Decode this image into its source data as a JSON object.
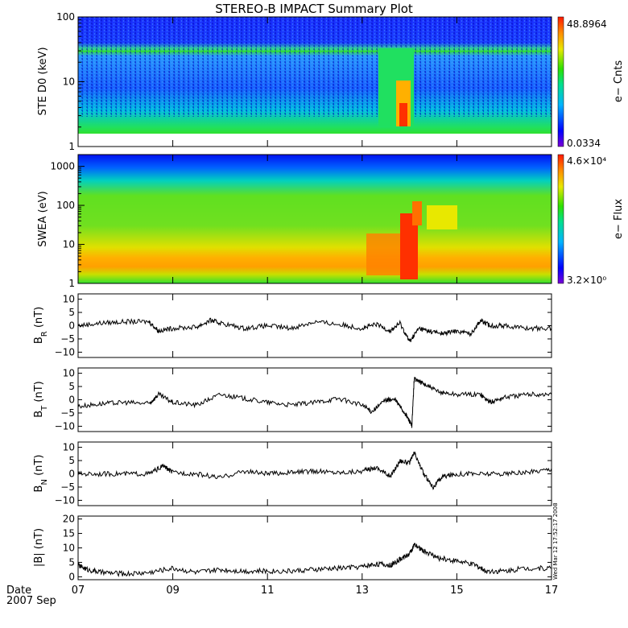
{
  "chart_data": {
    "type": "line",
    "title": "STEREO-B IMPACT Summary Plot",
    "x_axis": {
      "ticks": [
        "07",
        "09",
        "11",
        "13",
        "15",
        "17"
      ],
      "range": [
        7,
        17
      ],
      "date_label": "Date",
      "year_month": "2007 Sep"
    },
    "footnote": "Wed Mar 12 17:52:17 2008",
    "panels": [
      {
        "key": "ste",
        "type": "heatmap",
        "ylabel": "STE D0 (keV)",
        "y_scale": "log",
        "ylim": [
          1,
          100
        ],
        "y_ticks": [
          "1",
          "10",
          "100"
        ],
        "colorbar": {
          "label": "e− Cnts",
          "max": "48.8964",
          "min": "0.0334"
        }
      },
      {
        "key": "swea",
        "type": "heatmap",
        "ylabel": "SWEA (eV)",
        "y_scale": "log",
        "ylim": [
          1,
          2000
        ],
        "y_ticks": [
          "1",
          "10",
          "100",
          "1000"
        ],
        "colorbar": {
          "label": "e− Flux",
          "max": "4.6×10⁴",
          "min": "3.2×10⁰"
        }
      },
      {
        "key": "br",
        "type": "line",
        "ylabel": "B_R (nT)",
        "ylim": [
          -12,
          12
        ],
        "y_ticks": [
          "−10",
          "−5",
          "0",
          "5",
          "10"
        ],
        "x": [
          7.0,
          7.5,
          8.0,
          8.5,
          8.7,
          9.0,
          9.5,
          9.8,
          10.0,
          10.5,
          11.0,
          11.5,
          12.0,
          12.5,
          13.0,
          13.3,
          13.6,
          13.8,
          14.0,
          14.2,
          14.4,
          14.7,
          15.0,
          15.3,
          15.5,
          15.7,
          16.0,
          16.5,
          17.0
        ],
        "values": [
          0.0,
          1.0,
          1.5,
          1.5,
          -2.0,
          -1.0,
          -0.5,
          2.0,
          1.0,
          -1.0,
          0.0,
          -1.0,
          1.5,
          0.5,
          -1.0,
          0.5,
          -2.0,
          1.0,
          -6.0,
          -1.0,
          -2.0,
          -3.0,
          -2.0,
          -3.0,
          2.0,
          0.0,
          0.0,
          -1.0,
          -1.0
        ]
      },
      {
        "key": "bt",
        "type": "line",
        "ylabel": "B_T (nT)",
        "ylim": [
          -12,
          12
        ],
        "y_ticks": [
          "−10",
          "−5",
          "0",
          "5",
          "10"
        ],
        "x": [
          7.0,
          7.5,
          8.0,
          8.5,
          8.7,
          9.0,
          9.5,
          10.0,
          10.5,
          11.0,
          11.5,
          12.0,
          12.5,
          13.0,
          13.2,
          13.5,
          13.7,
          13.9,
          14.0,
          14.05,
          14.1,
          14.3,
          14.6,
          15.0,
          15.5,
          15.7,
          16.0,
          16.5,
          17.0
        ],
        "values": [
          -2.5,
          -1.5,
          -1.0,
          -1.5,
          2.0,
          -1.0,
          -2.0,
          2.0,
          0.5,
          -1.0,
          -2.0,
          -1.0,
          0.5,
          -2.0,
          -4.5,
          0.0,
          0.0,
          -5.0,
          -8.0,
          -10.0,
          8.0,
          6.0,
          3.0,
          2.0,
          2.0,
          -1.0,
          1.0,
          2.0,
          2.0
        ]
      },
      {
        "key": "bn",
        "type": "line",
        "ylabel": "B_N (nT)",
        "ylim": [
          -12,
          12
        ],
        "y_ticks": [
          "−10",
          "−5",
          "0",
          "5",
          "10"
        ],
        "x": [
          7.0,
          7.5,
          8.0,
          8.5,
          8.8,
          9.0,
          9.5,
          10.0,
          10.5,
          11.0,
          11.5,
          12.0,
          12.5,
          13.0,
          13.3,
          13.6,
          13.8,
          14.0,
          14.1,
          14.3,
          14.5,
          14.7,
          15.0,
          15.5,
          16.0,
          16.5,
          17.0
        ],
        "values": [
          0.0,
          0.0,
          0.0,
          0.0,
          3.0,
          0.5,
          0.0,
          -1.5,
          1.0,
          0.0,
          0.5,
          1.0,
          0.5,
          1.0,
          2.5,
          -1.0,
          5.0,
          4.0,
          8.0,
          0.0,
          -5.0,
          -1.0,
          0.0,
          0.0,
          0.0,
          0.5,
          2.0
        ]
      },
      {
        "key": "bmag",
        "type": "line",
        "ylabel": "|B| (nT)",
        "ylim": [
          -1,
          21
        ],
        "y_ticks": [
          "0",
          "5",
          "10",
          "15",
          "20"
        ],
        "x": [
          7.0,
          7.2,
          7.5,
          8.0,
          8.5,
          9.0,
          9.5,
          10.0,
          10.5,
          11.0,
          11.5,
          12.0,
          12.5,
          13.0,
          13.3,
          13.6,
          13.8,
          14.0,
          14.1,
          14.3,
          14.6,
          15.0,
          15.4,
          15.6,
          16.0,
          16.5,
          17.0
        ],
        "values": [
          4.0,
          2.5,
          1.5,
          1.0,
          1.5,
          3.0,
          1.5,
          2.5,
          2.0,
          2.0,
          2.0,
          2.5,
          3.0,
          3.5,
          4.5,
          4.0,
          6.0,
          8.0,
          11.0,
          9.0,
          6.5,
          5.5,
          4.0,
          2.0,
          2.0,
          3.0,
          3.0
        ]
      }
    ]
  }
}
